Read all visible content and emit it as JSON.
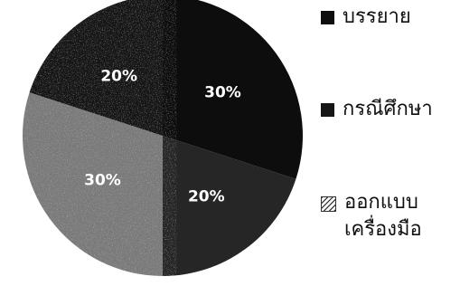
{
  "chart_data": {
    "type": "pie",
    "title": "",
    "legend_position": "right",
    "slices": [
      {
        "name": "บรรยาย",
        "value": 30,
        "label": "30%",
        "color": "#0d0d0d",
        "label_color": "#ffffff"
      },
      {
        "name": "กรณีศึกษา",
        "value": 20,
        "label": "20%",
        "color": "#161616",
        "label_color": "#ffffff"
      },
      {
        "name": "ออกแบบ\nเครื่องมือ",
        "value": 30,
        "label": "30%",
        "color": "#7a7a7a",
        "label_color": "#ffffff"
      },
      {
        "name": "",
        "value": 20,
        "label": "20%",
        "color": "#262626",
        "label_color": "#ffffff"
      }
    ]
  }
}
